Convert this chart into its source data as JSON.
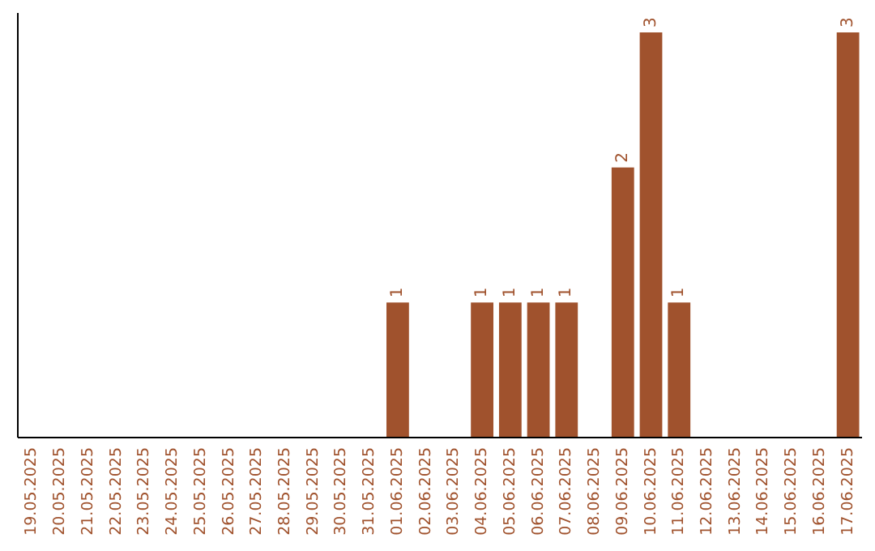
{
  "chart_data": {
    "type": "bar",
    "categories": [
      "19.05.2025",
      "20.05.2025",
      "21.05.2025",
      "22.05.2025",
      "23.05.2025",
      "24.05.2025",
      "25.05.2025",
      "26.05.2025",
      "27.05.2025",
      "28.05.2025",
      "29.05.2025",
      "30.05.2025",
      "31.05.2025",
      "01.06.2025",
      "02.06.2025",
      "03.06.2025",
      "04.06.2025",
      "05.06.2025",
      "06.06.2025",
      "07.06.2025",
      "08.06.2025",
      "09.06.2025",
      "10.06.2025",
      "11.06.2025",
      "12.06.2025",
      "13.06.2025",
      "14.06.2025",
      "15.06.2025",
      "16.06.2025",
      "17.06.2025"
    ],
    "values": [
      null,
      null,
      null,
      null,
      null,
      null,
      null,
      null,
      null,
      null,
      null,
      null,
      null,
      1,
      null,
      null,
      1,
      1,
      1,
      1,
      null,
      2,
      3,
      1,
      null,
      null,
      null,
      null,
      null,
      3
    ],
    "data_labels": true,
    "color": "#a0522d"
  }
}
